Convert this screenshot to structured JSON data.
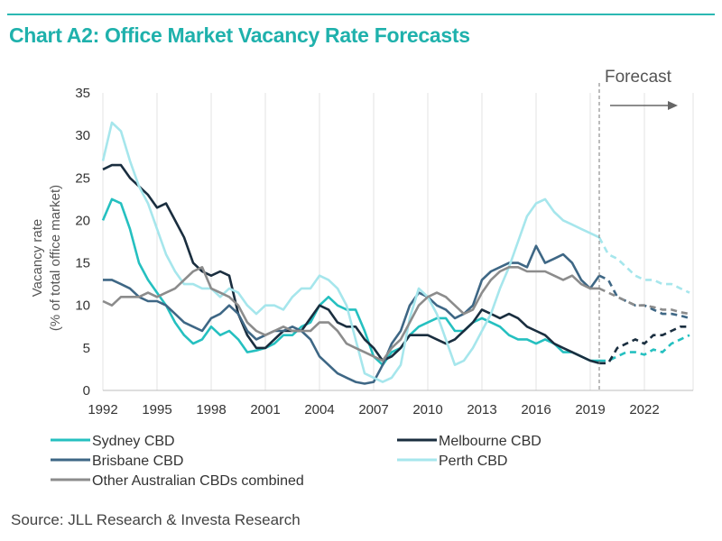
{
  "title": "Chart A2: Office Market Vacancy Rate Forecasts",
  "source": "Source: JLL Research & Investa Research",
  "colors": {
    "accent": "#1fb1ac",
    "sydney": "#25c0c0",
    "melbourne": "#1a2e3f",
    "brisbane": "#3e6785",
    "perth": "#a6e6ec",
    "other": "#8c8c8c"
  },
  "chart_data": {
    "type": "line",
    "ylabel": "Vacancy rate\n(% of total office market)",
    "ylim": [
      0,
      35
    ],
    "xlim": [
      1992,
      2024.7
    ],
    "y_ticks": [
      0,
      5,
      10,
      15,
      20,
      25,
      30,
      35
    ],
    "x_ticks": [
      1992,
      1995,
      1998,
      2001,
      2004,
      2007,
      2010,
      2013,
      2016,
      2019,
      2022
    ],
    "grid": "vertical",
    "forecast_start": 2019.5,
    "forecast_label": "Forecast",
    "legend_position": "bottom",
    "series": [
      {
        "name": "Sydney CBD",
        "color": "#25c0c0",
        "x": [
          1992,
          1992.5,
          1993,
          1993.5,
          1994,
          1994.5,
          1995,
          1995.5,
          1996,
          1996.5,
          1997,
          1997.5,
          1998,
          1998.5,
          1999,
          1999.5,
          2000,
          2000.5,
          2001,
          2001.5,
          2002,
          2002.5,
          2003,
          2003.5,
          2004,
          2004.5,
          2005,
          2005.5,
          2006,
          2006.5,
          2007,
          2007.5,
          2008,
          2008.5,
          2009,
          2009.5,
          2010,
          2010.5,
          2011,
          2011.5,
          2012,
          2012.5,
          2013,
          2013.5,
          2014,
          2014.5,
          2015,
          2015.5,
          2016,
          2016.5,
          2017,
          2017.5,
          2018,
          2018.5,
          2019,
          2019.5,
          2020,
          2020.5,
          2021,
          2021.5,
          2022,
          2022.5,
          2023,
          2023.5,
          2024,
          2024.5
        ],
        "y": [
          20,
          22.5,
          22,
          19,
          15,
          13,
          11.5,
          10,
          8,
          6.5,
          5.5,
          6,
          7.5,
          6.5,
          7,
          6,
          4.5,
          4.7,
          5,
          5.5,
          6.5,
          6.5,
          7.5,
          8,
          10,
          11,
          10,
          9.5,
          9.5,
          7,
          4,
          3,
          4.5,
          5,
          6.5,
          7.5,
          8,
          8.5,
          8.5,
          7,
          7,
          8,
          8.5,
          8,
          7.5,
          6.5,
          6,
          6,
          5.5,
          6,
          5.5,
          4.5,
          4.5,
          4,
          3.5,
          3.5,
          3.5,
          4,
          4.5,
          4.5,
          4.2,
          4.8,
          4.5,
          5.5,
          6,
          6.5
        ],
        "forecast_from": 2019.5
      },
      {
        "name": "Melbourne CBD",
        "color": "#1a2e3f",
        "x": [
          1992,
          1992.5,
          1993,
          1993.5,
          1994,
          1994.5,
          1995,
          1995.5,
          1996,
          1996.5,
          1997,
          1997.5,
          1998,
          1998.5,
          1999,
          1999.5,
          2000,
          2000.5,
          2001,
          2001.5,
          2002,
          2002.5,
          2003,
          2003.5,
          2004,
          2004.5,
          2005,
          2005.5,
          2006,
          2006.5,
          2007,
          2007.5,
          2008,
          2008.5,
          2009,
          2009.5,
          2010,
          2010.5,
          2011,
          2011.5,
          2012,
          2012.5,
          2013,
          2013.5,
          2014,
          2014.5,
          2015,
          2015.5,
          2016,
          2016.5,
          2017,
          2017.5,
          2018,
          2018.5,
          2019,
          2019.5,
          2020,
          2020.5,
          2021,
          2021.5,
          2022,
          2022.5,
          2023,
          2023.5,
          2024,
          2024.5
        ],
        "y": [
          26,
          26.5,
          26.5,
          25,
          24,
          23,
          21.5,
          22,
          20,
          18,
          15,
          14,
          13.5,
          14,
          13.5,
          9,
          6.5,
          5,
          5,
          6,
          7,
          7,
          7,
          8.5,
          10,
          9.5,
          8,
          7.5,
          7.5,
          6,
          5,
          3.5,
          4,
          5,
          6.5,
          6.5,
          6.5,
          6,
          5.5,
          6,
          7,
          8,
          9.5,
          9,
          8.5,
          9,
          8.5,
          7.5,
          7,
          6.5,
          5.5,
          5,
          4.5,
          4,
          3.5,
          3.2,
          3.2,
          5,
          5.5,
          6,
          5.5,
          6.5,
          6.5,
          7,
          7.5,
          7.5
        ],
        "forecast_from": 2019.5
      },
      {
        "name": "Brisbane CBD",
        "color": "#3e6785",
        "x": [
          1992,
          1992.5,
          1993,
          1993.5,
          1994,
          1994.5,
          1995,
          1995.5,
          1996,
          1996.5,
          1997,
          1997.5,
          1998,
          1998.5,
          1999,
          1999.5,
          2000,
          2000.5,
          2001,
          2001.5,
          2002,
          2002.5,
          2003,
          2003.5,
          2004,
          2004.5,
          2005,
          2005.5,
          2006,
          2006.5,
          2007,
          2007.5,
          2008,
          2008.5,
          2009,
          2009.5,
          2010,
          2010.5,
          2011,
          2011.5,
          2012,
          2012.5,
          2013,
          2013.5,
          2014,
          2014.5,
          2015,
          2015.5,
          2016,
          2016.5,
          2017,
          2017.5,
          2018,
          2018.5,
          2019,
          2019.5,
          2020,
          2020.5,
          2021,
          2021.5,
          2022,
          2022.5,
          2023,
          2023.5,
          2024,
          2024.5
        ],
        "y": [
          13,
          13,
          12.5,
          12,
          11,
          10.5,
          10.5,
          10,
          9,
          8,
          7.5,
          7,
          8.5,
          9,
          10,
          9,
          7,
          6,
          6.5,
          7,
          7,
          7.5,
          7,
          6,
          4,
          3,
          2,
          1.5,
          1,
          0.8,
          1,
          3,
          5.5,
          7,
          10,
          11.5,
          11,
          10,
          9.5,
          8.5,
          9,
          10,
          13,
          14,
          14.5,
          15,
          15,
          14.5,
          17,
          15,
          15.5,
          16,
          15,
          13,
          12,
          13.5,
          13,
          11,
          10.5,
          10,
          10,
          9.5,
          9,
          9,
          8.8,
          8.5
        ],
        "forecast_from": 2019.5
      },
      {
        "name": "Perth CBD",
        "color": "#a6e6ec",
        "x": [
          1992,
          1992.5,
          1993,
          1993.5,
          1994,
          1994.5,
          1995,
          1995.5,
          1996,
          1996.5,
          1997,
          1997.5,
          1998,
          1998.5,
          1999,
          1999.5,
          2000,
          2000.5,
          2001,
          2001.5,
          2002,
          2002.5,
          2003,
          2003.5,
          2004,
          2004.5,
          2005,
          2005.5,
          2006,
          2006.5,
          2007,
          2007.5,
          2008,
          2008.5,
          2009,
          2009.5,
          2010,
          2010.5,
          2011,
          2011.5,
          2012,
          2012.5,
          2013,
          2013.5,
          2014,
          2014.5,
          2015,
          2015.5,
          2016,
          2016.5,
          2017,
          2017.5,
          2018,
          2018.5,
          2019,
          2019.5,
          2020,
          2020.5,
          2021,
          2021.5,
          2022,
          2022.5,
          2023,
          2023.5,
          2024,
          2024.5
        ],
        "y": [
          27,
          31.5,
          30.5,
          27,
          24,
          22,
          19,
          16,
          14,
          12.5,
          12.5,
          12,
          12,
          11,
          12,
          11.5,
          10,
          9,
          10,
          10,
          9.5,
          11,
          12,
          12,
          13.5,
          13,
          12,
          10,
          6,
          2,
          1.5,
          1,
          1.5,
          3,
          8.5,
          12,
          11,
          9,
          6,
          3,
          3.5,
          5,
          7,
          9,
          12,
          14.5,
          17.5,
          20.5,
          22,
          22.5,
          21,
          20,
          19.5,
          19,
          18.5,
          18,
          16,
          15.5,
          14.5,
          13.5,
          13,
          13,
          12.5,
          12.5,
          12,
          11.5
        ],
        "forecast_from": 2019.5
      },
      {
        "name": "Other Australian CBDs combined",
        "color": "#8c8c8c",
        "x": [
          1992,
          1992.5,
          1993,
          1993.5,
          1994,
          1994.5,
          1995,
          1995.5,
          1996,
          1996.5,
          1997,
          1997.5,
          1998,
          1998.5,
          1999,
          1999.5,
          2000,
          2000.5,
          2001,
          2001.5,
          2002,
          2002.5,
          2003,
          2003.5,
          2004,
          2004.5,
          2005,
          2005.5,
          2006,
          2006.5,
          2007,
          2007.5,
          2008,
          2008.5,
          2009,
          2009.5,
          2010,
          2010.5,
          2011,
          2011.5,
          2012,
          2012.5,
          2013,
          2013.5,
          2014,
          2014.5,
          2015,
          2015.5,
          2016,
          2016.5,
          2017,
          2017.5,
          2018,
          2018.5,
          2019,
          2019.5,
          2020,
          2020.5,
          2021,
          2021.5,
          2022,
          2022.5,
          2023,
          2023.5,
          2024,
          2024.5
        ],
        "y": [
          10.5,
          10,
          11,
          11,
          11,
          11.5,
          11,
          11.5,
          12,
          13,
          14,
          14.5,
          12,
          11.5,
          11,
          10,
          8,
          7,
          6.5,
          7,
          7.5,
          7,
          7,
          7,
          8,
          8,
          7,
          5.5,
          5,
          4.5,
          4,
          3.5,
          5,
          6,
          8,
          10,
          11,
          11.5,
          11,
          10,
          9,
          9.5,
          11.5,
          13,
          14,
          14.5,
          14.5,
          14,
          14,
          14,
          13.5,
          13,
          13.5,
          12.5,
          12,
          12,
          11.5,
          11,
          10.5,
          10,
          10,
          9.8,
          9.5,
          9.5,
          9.2,
          9
        ],
        "forecast_from": 2019.5
      }
    ]
  }
}
